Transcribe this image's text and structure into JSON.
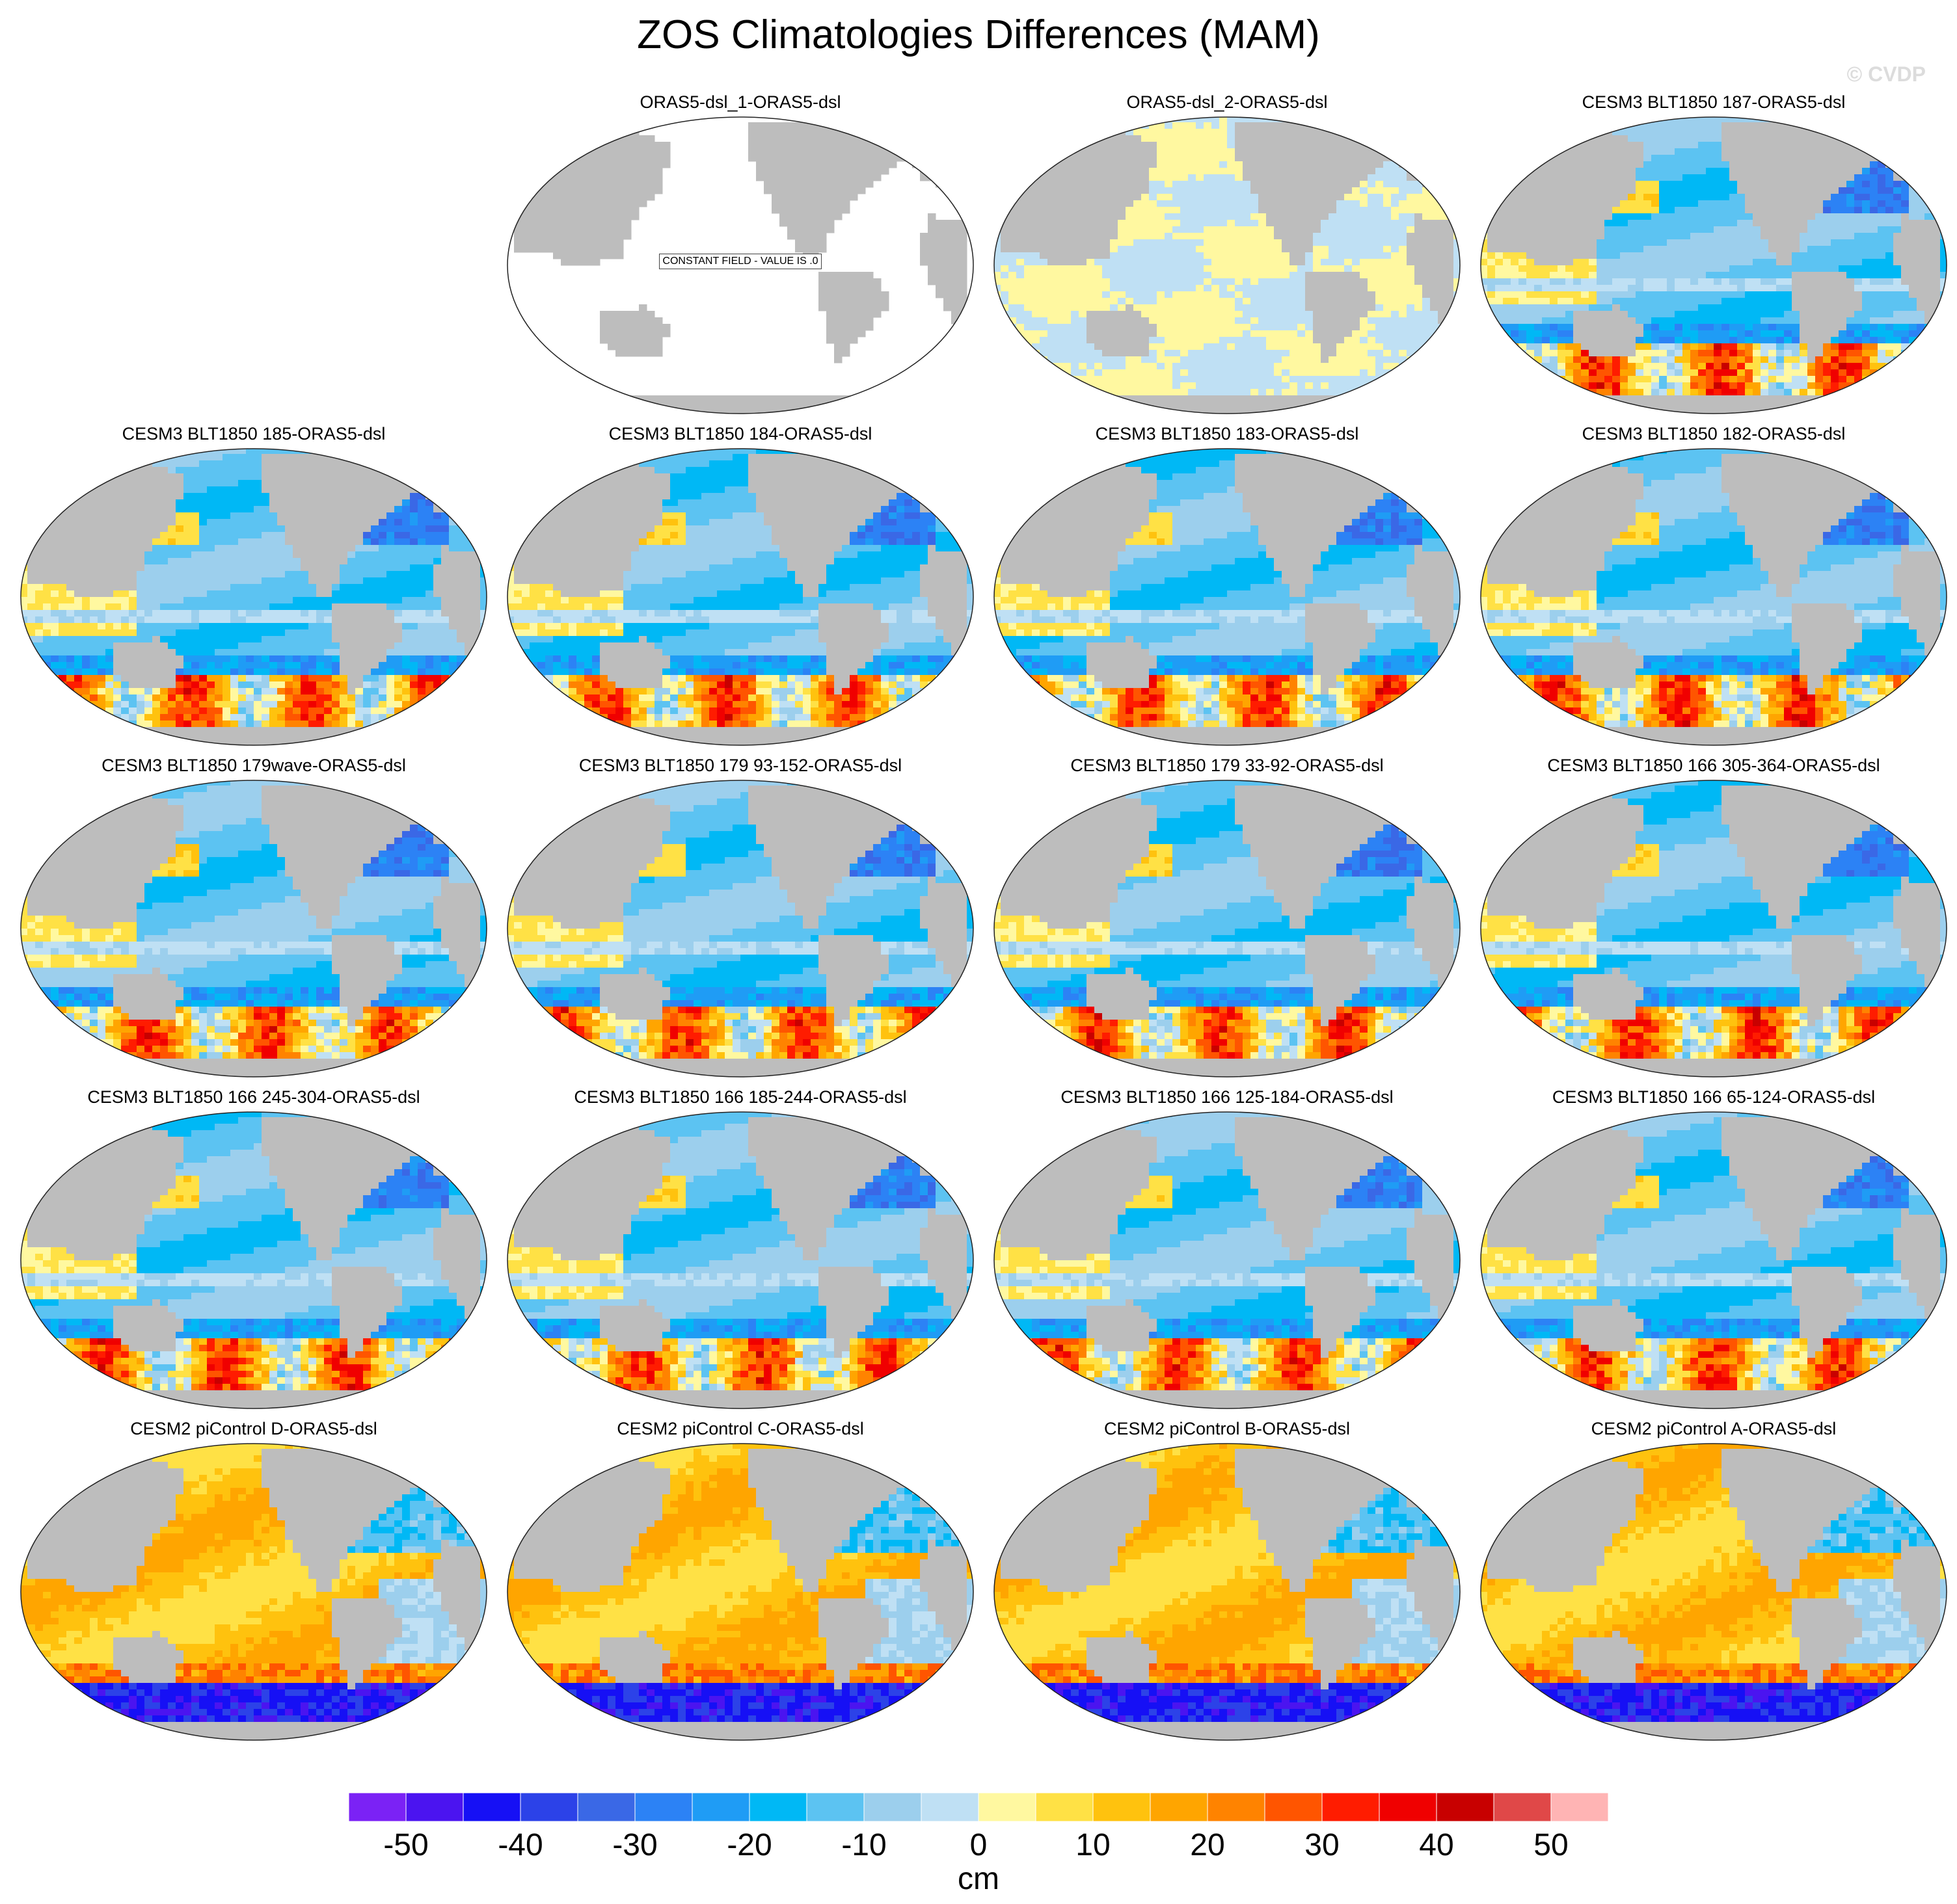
{
  "figure": {
    "title": "ZOS Climatologies Differences (MAM)",
    "watermark": "© CVDP",
    "units": "cm"
  },
  "colors": {
    "land": "#bdbdbd",
    "land_edge": "#777777",
    "ocean_blank": "#ffffff"
  },
  "colorbar": {
    "colors": [
      "#7b22f5",
      "#4b14f0",
      "#1610f5",
      "#2c42e8",
      "#3a68e6",
      "#2c82f5",
      "#1f9cf5",
      "#00b8f5",
      "#5cc3f2",
      "#9ccfed",
      "#bfe0f4",
      "#fff8a0",
      "#ffe145",
      "#ffc20e",
      "#ffa500",
      "#ff8300",
      "#ff5500",
      "#ff1c00",
      "#f00000",
      "#c80000",
      "#e04848",
      "#ffb4b4"
    ],
    "ticks": [
      -50,
      -40,
      -30,
      -20,
      -10,
      0,
      10,
      20,
      30,
      40,
      50
    ]
  },
  "panels": [
    {
      "title": "ORAS5-dsl_1-ORAS5-dsl",
      "pattern": "constant",
      "note": "CONSTANT FIELD - VALUE IS .0"
    },
    {
      "title": "ORAS5-dsl_2-ORAS5-dsl",
      "pattern": "noise"
    },
    {
      "title": "CESM3 BLT1850 187-ORAS5-dsl",
      "pattern": "cesm3"
    },
    {
      "title": "CESM3 BLT1850 185-ORAS5-dsl",
      "pattern": "cesm3"
    },
    {
      "title": "CESM3 BLT1850 184-ORAS5-dsl",
      "pattern": "cesm3"
    },
    {
      "title": "CESM3 BLT1850 183-ORAS5-dsl",
      "pattern": "cesm3"
    },
    {
      "title": "CESM3 BLT1850 182-ORAS5-dsl",
      "pattern": "cesm3"
    },
    {
      "title": "CESM3 BLT1850 179wave-ORAS5-dsl",
      "pattern": "cesm3"
    },
    {
      "title": "CESM3 BLT1850 179 93-152-ORAS5-dsl",
      "pattern": "cesm3"
    },
    {
      "title": "CESM3 BLT1850 179 33-92-ORAS5-dsl",
      "pattern": "cesm3"
    },
    {
      "title": "CESM3 BLT1850 166 305-364-ORAS5-dsl",
      "pattern": "cesm3"
    },
    {
      "title": "CESM3 BLT1850 166 245-304-ORAS5-dsl",
      "pattern": "cesm3"
    },
    {
      "title": "CESM3 BLT1850 166 185-244-ORAS5-dsl",
      "pattern": "cesm3"
    },
    {
      "title": "CESM3 BLT1850 166 125-184-ORAS5-dsl",
      "pattern": "cesm3"
    },
    {
      "title": "CESM3 BLT1850 166 65-124-ORAS5-dsl",
      "pattern": "cesm3"
    },
    {
      "title": "CESM2 piControl D-ORAS5-dsl",
      "pattern": "cesm2"
    },
    {
      "title": "CESM2 piControl C-ORAS5-dsl",
      "pattern": "cesm2"
    },
    {
      "title": "CESM2 piControl B-ORAS5-dsl",
      "pattern": "cesm2"
    },
    {
      "title": "CESM2 piControl A-ORAS5-dsl",
      "pattern": "cesm2"
    }
  ]
}
